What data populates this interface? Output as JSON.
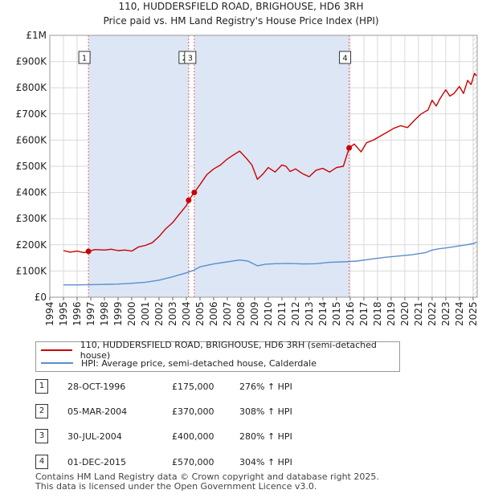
{
  "chart_data": {
    "type": "line",
    "title": "110, HUDDERSFIELD ROAD, BRIGHOUSE, HD6 3RH",
    "subtitle": "Price paid vs. HM Land Registry's House Price Index (HPI)",
    "xlabel": "",
    "ylabel": "",
    "xlim": [
      1994,
      2025.3
    ],
    "ylim": [
      0,
      1000000
    ],
    "x_ticks": [
      "1994",
      "1995",
      "1996",
      "1997",
      "1998",
      "1999",
      "2000",
      "2001",
      "2002",
      "2003",
      "2004",
      "2005",
      "2006",
      "2007",
      "2008",
      "2009",
      "2010",
      "2011",
      "2012",
      "2013",
      "2014",
      "2015",
      "2016",
      "2017",
      "2018",
      "2019",
      "2020",
      "2021",
      "2022",
      "2023",
      "2024",
      "2025"
    ],
    "y_ticks": [
      {
        "value": 0,
        "label": "£0"
      },
      {
        "value": 100000,
        "label": "£100K"
      },
      {
        "value": 200000,
        "label": "£200K"
      },
      {
        "value": 300000,
        "label": "£300K"
      },
      {
        "value": 400000,
        "label": "£400K"
      },
      {
        "value": 500000,
        "label": "£500K"
      },
      {
        "value": 600000,
        "label": "£600K"
      },
      {
        "value": 700000,
        "label": "£700K"
      },
      {
        "value": 800000,
        "label": "£800K"
      },
      {
        "value": 900000,
        "label": "£900K"
      },
      {
        "value": 1000000,
        "label": "£1M"
      }
    ],
    "series": [
      {
        "name": "110, HUDDERSFIELD ROAD, BRIGHOUSE, HD6 3RH (semi-detached house)",
        "color": "#cc0000",
        "points": [
          [
            1995.0,
            178000
          ],
          [
            1995.5,
            172000
          ],
          [
            1996.0,
            176000
          ],
          [
            1996.5,
            170000
          ],
          [
            1996.83,
            175000
          ],
          [
            1997.3,
            182000
          ],
          [
            1998.0,
            180000
          ],
          [
            1998.5,
            183000
          ],
          [
            1999.0,
            178000
          ],
          [
            1999.5,
            180000
          ],
          [
            2000.0,
            176000
          ],
          [
            2000.5,
            192000
          ],
          [
            2001.0,
            198000
          ],
          [
            2001.5,
            208000
          ],
          [
            2002.0,
            232000
          ],
          [
            2002.5,
            262000
          ],
          [
            2003.0,
            285000
          ],
          [
            2003.5,
            318000
          ],
          [
            2004.0,
            350000
          ],
          [
            2004.17,
            370000
          ],
          [
            2004.58,
            400000
          ],
          [
            2005.0,
            430000
          ],
          [
            2005.5,
            468000
          ],
          [
            2006.0,
            490000
          ],
          [
            2006.5,
            505000
          ],
          [
            2007.0,
            528000
          ],
          [
            2007.5,
            545000
          ],
          [
            2007.9,
            558000
          ],
          [
            2008.4,
            530000
          ],
          [
            2008.8,
            505000
          ],
          [
            2009.2,
            450000
          ],
          [
            2009.6,
            470000
          ],
          [
            2010.0,
            495000
          ],
          [
            2010.5,
            478000
          ],
          [
            2011.0,
            505000
          ],
          [
            2011.3,
            500000
          ],
          [
            2011.6,
            480000
          ],
          [
            2012.0,
            490000
          ],
          [
            2012.5,
            472000
          ],
          [
            2013.0,
            460000
          ],
          [
            2013.5,
            485000
          ],
          [
            2014.0,
            492000
          ],
          [
            2014.5,
            478000
          ],
          [
            2015.0,
            495000
          ],
          [
            2015.5,
            500000
          ],
          [
            2015.92,
            570000
          ],
          [
            2016.3,
            585000
          ],
          [
            2016.8,
            555000
          ],
          [
            2017.2,
            590000
          ],
          [
            2017.7,
            600000
          ],
          [
            2018.2,
            615000
          ],
          [
            2018.7,
            630000
          ],
          [
            2019.2,
            645000
          ],
          [
            2019.7,
            655000
          ],
          [
            2020.2,
            648000
          ],
          [
            2020.7,
            675000
          ],
          [
            2021.2,
            700000
          ],
          [
            2021.7,
            715000
          ],
          [
            2022.0,
            752000
          ],
          [
            2022.3,
            730000
          ],
          [
            2022.6,
            760000
          ],
          [
            2023.0,
            792000
          ],
          [
            2023.3,
            768000
          ],
          [
            2023.6,
            778000
          ],
          [
            2024.0,
            805000
          ],
          [
            2024.3,
            778000
          ],
          [
            2024.6,
            828000
          ],
          [
            2024.85,
            812000
          ],
          [
            2025.1,
            855000
          ],
          [
            2025.25,
            845000
          ]
        ]
      },
      {
        "name": "HPI: Average price, semi-detached house, Calderdale",
        "color": "#5b8fce",
        "points": [
          [
            1995.0,
            47000
          ],
          [
            1996.0,
            47000
          ],
          [
            1997.0,
            48000
          ],
          [
            1998.0,
            49000
          ],
          [
            1999.0,
            50000
          ],
          [
            2000.0,
            53000
          ],
          [
            2001.0,
            57000
          ],
          [
            2002.0,
            65000
          ],
          [
            2003.0,
            78000
          ],
          [
            2004.0,
            93000
          ],
          [
            2004.5,
            102000
          ],
          [
            2005.0,
            116000
          ],
          [
            2006.0,
            127000
          ],
          [
            2007.0,
            135000
          ],
          [
            2007.9,
            142000
          ],
          [
            2008.5,
            138000
          ],
          [
            2009.2,
            120000
          ],
          [
            2009.8,
            126000
          ],
          [
            2010.5,
            128000
          ],
          [
            2011.5,
            129000
          ],
          [
            2012.5,
            127000
          ],
          [
            2013.5,
            128000
          ],
          [
            2014.5,
            133000
          ],
          [
            2015.5,
            135000
          ],
          [
            2016.5,
            138000
          ],
          [
            2017.5,
            145000
          ],
          [
            2018.5,
            152000
          ],
          [
            2019.5,
            157000
          ],
          [
            2020.5,
            162000
          ],
          [
            2021.5,
            170000
          ],
          [
            2022.0,
            180000
          ],
          [
            2022.5,
            185000
          ],
          [
            2023.0,
            188000
          ],
          [
            2023.5,
            192000
          ],
          [
            2024.0,
            196000
          ],
          [
            2024.5,
            200000
          ],
          [
            2025.0,
            205000
          ],
          [
            2025.25,
            210000
          ]
        ]
      }
    ],
    "sales": [
      {
        "num": "1",
        "x": 1996.83,
        "price": 175000
      },
      {
        "num": "2",
        "x": 2004.17,
        "price": 370000
      },
      {
        "num": "3",
        "x": 2004.58,
        "price": 400000
      },
      {
        "num": "4",
        "x": 2015.92,
        "price": 570000
      }
    ],
    "shaded_spans": [
      [
        1996.83,
        2004.17
      ],
      [
        2004.58,
        2015.92
      ]
    ],
    "hatched_after": 2025.0,
    "colors": {
      "red": "#cc0000",
      "blue": "#5b8fce",
      "shade": "#dce6f5",
      "grid": "#d9d9d9"
    }
  },
  "legend": {
    "property_label": "110, HUDDERSFIELD ROAD, BRIGHOUSE, HD6 3RH (semi-detached house)",
    "hpi_label": "HPI: Average price, semi-detached house, Calderdale"
  },
  "sales_table": [
    {
      "num": "1",
      "date": "28-OCT-1996",
      "price": "£175,000",
      "hpi": "276% ↑ HPI"
    },
    {
      "num": "2",
      "date": "05-MAR-2004",
      "price": "£370,000",
      "hpi": "308% ↑ HPI"
    },
    {
      "num": "3",
      "date": "30-JUL-2004",
      "price": "£400,000",
      "hpi": "280% ↑ HPI"
    },
    {
      "num": "4",
      "date": "01-DEC-2015",
      "price": "£570,000",
      "hpi": "304% ↑ HPI"
    }
  ],
  "footer": {
    "line1": "Contains HM Land Registry data © Crown copyright and database right 2025.",
    "line2": "This data is licensed under the Open Government Licence v3.0."
  }
}
